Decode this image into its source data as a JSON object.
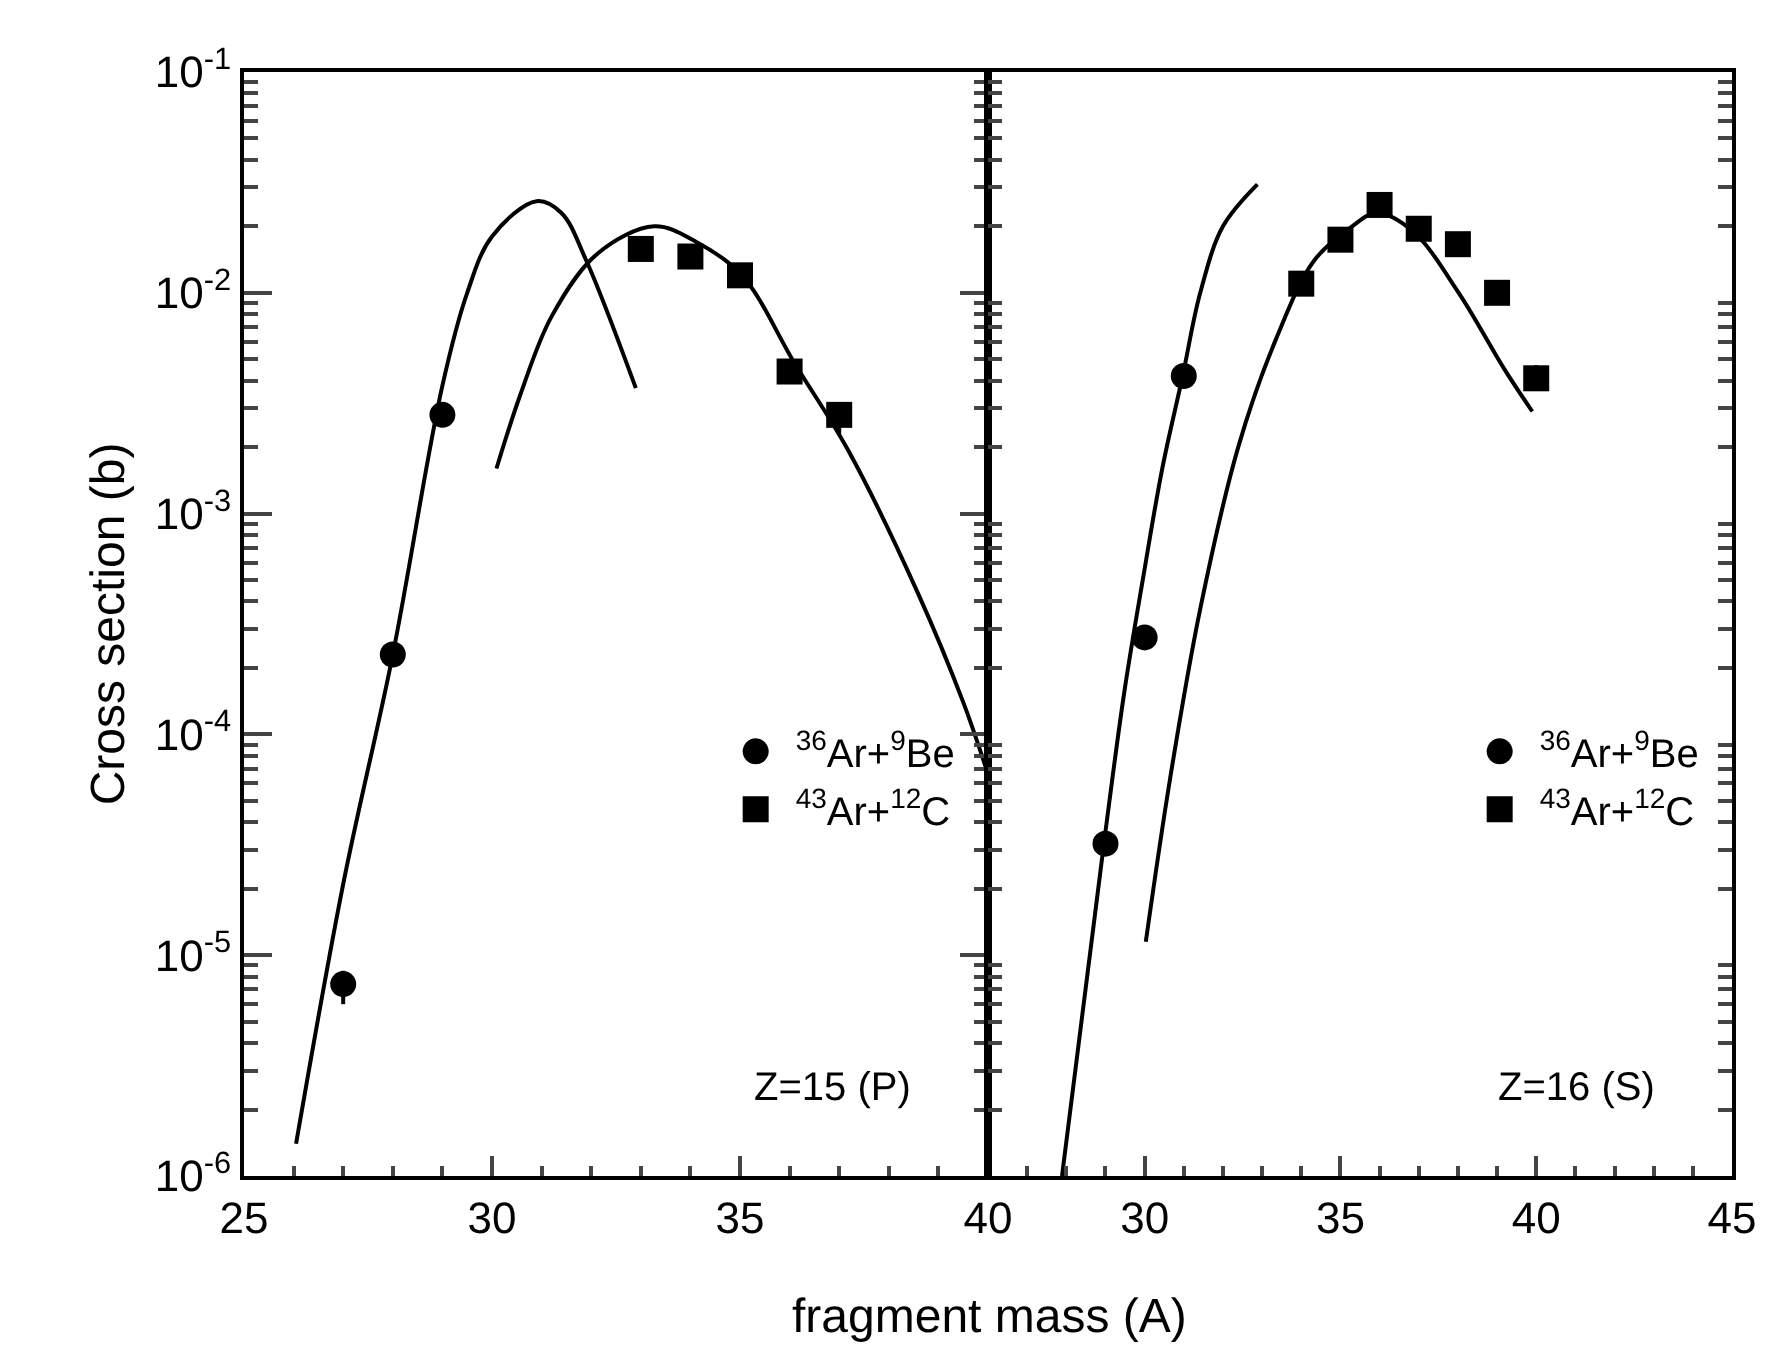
{
  "chart_data": [
    {
      "type": "scatter",
      "ylabel": "Cross section (b)",
      "xlabel": "fragment mass (A)",
      "log": "y",
      "xlim": [
        25,
        40
      ],
      "xticks": [
        25,
        30,
        35,
        40
      ],
      "ylim": [
        1e-06,
        0.1
      ],
      "yticks": [
        {
          "value": 1e-06,
          "label": "10$^{-6}$"
        },
        {
          "value": 1e-05,
          "label": "10$^{-5}$"
        },
        {
          "value": 0.0001,
          "label": "10$^{-4}$"
        },
        {
          "value": 0.001,
          "label": "10$^{-3}$"
        },
        {
          "value": 0.01,
          "label": "10$^{-2}$"
        },
        {
          "value": 0.1,
          "label": "10$^{-1}$"
        }
      ],
      "legend": "bottom right",
      "annotations": [
        "Z=15 (P)"
      ],
      "series": [
        {
          "name": "$^{36}$Ar+$^{9}$Be",
          "marker": "circle",
          "color": "#000000",
          "x": [
            27,
            28,
            29
          ],
          "values": [
            7.4e-06,
            0.00023,
            0.0028
          ],
          "errors": [
            [
              6e-06,
              8.5e-06
            ],
            null,
            null
          ]
        },
        {
          "name": "$^{43}$Ar+$^{12}$C",
          "marker": "square",
          "color": "#000000",
          "x": [
            33,
            34,
            35,
            36,
            37
          ],
          "values": [
            0.0158,
            0.0146,
            0.012,
            0.0044,
            0.0028
          ],
          "errors": [
            null,
            null,
            null,
            null,
            [
              0.0023,
              0.0032
            ]
          ]
        },
        {
          "type": "line",
          "color": "#000000",
          "x": [
            26.05,
            27.0,
            28.0,
            29.0,
            29.5,
            30.0,
            30.9,
            31.4,
            31.9,
            32.9
          ],
          "values": [
            1.4e-06,
            2.1e-05,
            0.00023,
            0.0038,
            0.01,
            0.018,
            0.026,
            0.023,
            0.014,
            0.0037
          ]
        },
        {
          "type": "line",
          "color": "#000000",
          "x": [
            30.09,
            30.58,
            31.2,
            32.12,
            33.27,
            34.12,
            35.04,
            36.1,
            37.2,
            38.58,
            39.5,
            40.0
          ],
          "values": [
            0.0016,
            0.0035,
            0.0078,
            0.015,
            0.02,
            0.017,
            0.012,
            0.0048,
            0.0019,
            0.00044,
            0.00014,
            6.6e-05
          ]
        }
      ]
    },
    {
      "type": "scatter",
      "log": "y",
      "tick_labels": "x",
      "xlim": [
        26,
        45
      ],
      "xticks": [
        30,
        35,
        40,
        45
      ],
      "ylim": [
        1e-06,
        0.1
      ],
      "legend": "bottom right",
      "annotations": [
        "Z=16 (S)"
      ],
      "series": [
        {
          "name": "$^{36}$Ar+$^{9}$Be",
          "marker": "circle",
          "color": "#000000",
          "x": [
            29,
            30,
            31
          ],
          "values": [
            3.2e-05,
            0.000275,
            0.0042
          ]
        },
        {
          "name": "$^{43}$Ar+$^{12}$C",
          "marker": "square",
          "color": "#000000",
          "x": [
            34,
            35,
            36,
            37,
            38,
            39,
            40
          ],
          "values": [
            0.011,
            0.0174,
            0.025,
            0.0195,
            0.0166,
            0.01,
            0.0041
          ],
          "errors": [
            null,
            null,
            null,
            null,
            null,
            null,
            [
              0.0036,
              0.0047
            ]
          ]
        },
        {
          "type": "line",
          "color": "#000000",
          "x": [
            27.89,
            28.96,
            29.48,
            29.96,
            30.45,
            30.97,
            31.42,
            32.0,
            32.88
          ],
          "values": [
            1e-06,
            3.2e-05,
            0.000155,
            0.00051,
            0.0016,
            0.0042,
            0.01,
            0.02,
            0.031
          ]
        },
        {
          "type": "line",
          "color": "#000000",
          "x": [
            30.03,
            30.65,
            31.42,
            32.39,
            33.36,
            34.33,
            35.3,
            35.94,
            36.85,
            38.02,
            39.19,
            39.9
          ],
          "values": [
            1.15e-05,
            6.3e-05,
            0.00037,
            0.002,
            0.0062,
            0.014,
            0.02,
            0.023,
            0.019,
            0.01,
            0.0045,
            0.0029
          ]
        }
      ]
    }
  ]
}
